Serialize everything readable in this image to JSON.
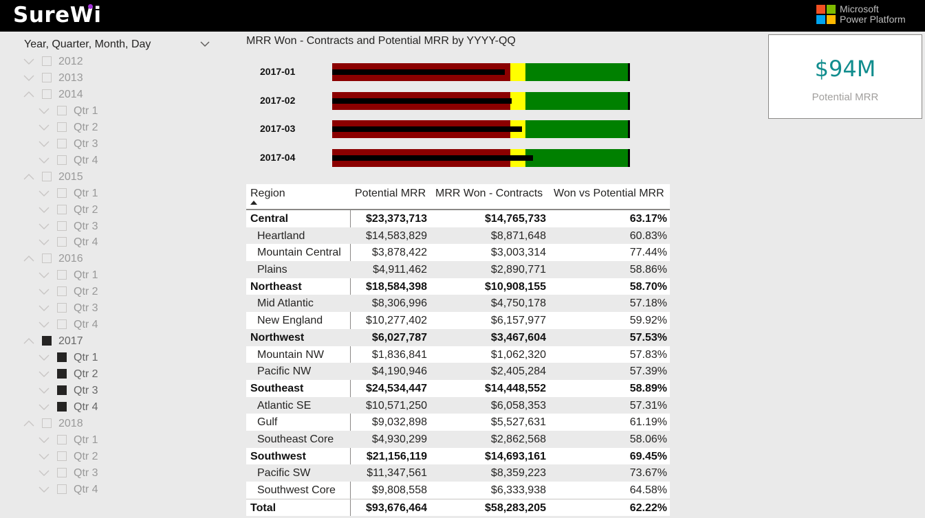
{
  "header": {
    "brand": "SureWi",
    "vendor_line1": "Microsoft",
    "vendor_line2": "Power Platform"
  },
  "slicer": {
    "title": "Year, Quarter, Month, Day",
    "items": [
      {
        "label": "2012",
        "level": 0,
        "expanded": false,
        "checked": false
      },
      {
        "label": "2013",
        "level": 0,
        "expanded": false,
        "checked": false
      },
      {
        "label": "2014",
        "level": 0,
        "expanded": true,
        "checked": false
      },
      {
        "label": "Qtr 1",
        "level": 1,
        "expanded": false,
        "checked": false
      },
      {
        "label": "Qtr 2",
        "level": 1,
        "expanded": false,
        "checked": false
      },
      {
        "label": "Qtr 3",
        "level": 1,
        "expanded": false,
        "checked": false
      },
      {
        "label": "Qtr 4",
        "level": 1,
        "expanded": false,
        "checked": false
      },
      {
        "label": "2015",
        "level": 0,
        "expanded": true,
        "checked": false
      },
      {
        "label": "Qtr 1",
        "level": 1,
        "expanded": false,
        "checked": false
      },
      {
        "label": "Qtr 2",
        "level": 1,
        "expanded": false,
        "checked": false
      },
      {
        "label": "Qtr 3",
        "level": 1,
        "expanded": false,
        "checked": false
      },
      {
        "label": "Qtr 4",
        "level": 1,
        "expanded": false,
        "checked": false
      },
      {
        "label": "2016",
        "level": 0,
        "expanded": true,
        "checked": false
      },
      {
        "label": "Qtr 1",
        "level": 1,
        "expanded": false,
        "checked": false
      },
      {
        "label": "Qtr 2",
        "level": 1,
        "expanded": false,
        "checked": false
      },
      {
        "label": "Qtr 3",
        "level": 1,
        "expanded": false,
        "checked": false
      },
      {
        "label": "Qtr 4",
        "level": 1,
        "expanded": false,
        "checked": false
      },
      {
        "label": "2017",
        "level": 0,
        "expanded": true,
        "checked": true
      },
      {
        "label": "Qtr 1",
        "level": 1,
        "expanded": false,
        "checked": true
      },
      {
        "label": "Qtr 2",
        "level": 1,
        "expanded": false,
        "checked": true
      },
      {
        "label": "Qtr 3",
        "level": 1,
        "expanded": false,
        "checked": true
      },
      {
        "label": "Qtr 4",
        "level": 1,
        "expanded": false,
        "checked": true
      },
      {
        "label": "2018",
        "level": 0,
        "expanded": true,
        "checked": false
      },
      {
        "label": "Qtr 1",
        "level": 1,
        "expanded": false,
        "checked": false
      },
      {
        "label": "Qtr 2",
        "level": 1,
        "expanded": false,
        "checked": false
      },
      {
        "label": "Qtr 3",
        "level": 1,
        "expanded": false,
        "checked": false
      },
      {
        "label": "Qtr 4",
        "level": 1,
        "expanded": false,
        "checked": false
      }
    ]
  },
  "chart_data": {
    "type": "bullet",
    "title": "MRR Won - Contracts and Potential MRR by YYYY-QQ",
    "scale_max": 100,
    "bands": [
      {
        "name": "poor",
        "upto": 60,
        "color": "#8b0000"
      },
      {
        "name": "satisfactory",
        "upto": 65,
        "color": "#ffff00"
      },
      {
        "name": "good",
        "upto": 100,
        "color": "#008000"
      }
    ],
    "categories": [
      "2017-01",
      "2017-02",
      "2017-03",
      "2017-04"
    ],
    "values": [
      58,
      60.5,
      64,
      67.5
    ],
    "targets": [
      100,
      100,
      100,
      100
    ]
  },
  "card": {
    "value": "$94M",
    "label": "Potential MRR"
  },
  "table": {
    "columns": [
      "Region",
      "Potential MRR",
      "MRR Won - Contracts",
      "Won vs Potential MRR"
    ],
    "rows": [
      {
        "region": "Central",
        "potential": "$23,373,713",
        "won": "$14,765,733",
        "pct": "63.17%",
        "bold": true
      },
      {
        "region": "Heartland",
        "potential": "$14,583,829",
        "won": "$8,871,648",
        "pct": "60.83%",
        "bold": false
      },
      {
        "region": "Mountain Central",
        "potential": "$3,878,422",
        "won": "$3,003,314",
        "pct": "77.44%",
        "bold": false
      },
      {
        "region": "Plains",
        "potential": "$4,911,462",
        "won": "$2,890,771",
        "pct": "58.86%",
        "bold": false
      },
      {
        "region": "Northeast",
        "potential": "$18,584,398",
        "won": "$10,908,155",
        "pct": "58.70%",
        "bold": true
      },
      {
        "region": "Mid Atlantic",
        "potential": "$8,306,996",
        "won": "$4,750,178",
        "pct": "57.18%",
        "bold": false
      },
      {
        "region": "New England",
        "potential": "$10,277,402",
        "won": "$6,157,977",
        "pct": "59.92%",
        "bold": false
      },
      {
        "region": "Northwest",
        "potential": "$6,027,787",
        "won": "$3,467,604",
        "pct": "57.53%",
        "bold": true
      },
      {
        "region": "Mountain NW",
        "potential": "$1,836,841",
        "won": "$1,062,320",
        "pct": "57.83%",
        "bold": false
      },
      {
        "region": "Pacific NW",
        "potential": "$4,190,946",
        "won": "$2,405,284",
        "pct": "57.39%",
        "bold": false
      },
      {
        "region": "Southeast",
        "potential": "$24,534,447",
        "won": "$14,448,552",
        "pct": "58.89%",
        "bold": true
      },
      {
        "region": "Atlantic SE",
        "potential": "$10,571,250",
        "won": "$6,058,353",
        "pct": "57.31%",
        "bold": false
      },
      {
        "region": "Gulf",
        "potential": "$9,032,898",
        "won": "$5,527,631",
        "pct": "61.19%",
        "bold": false
      },
      {
        "region": "Southeast Core",
        "potential": "$4,930,299",
        "won": "$2,862,568",
        "pct": "58.06%",
        "bold": false
      },
      {
        "region": "Southwest",
        "potential": "$21,156,119",
        "won": "$14,693,161",
        "pct": "69.45%",
        "bold": true
      },
      {
        "region": "Pacific SW",
        "potential": "$11,347,561",
        "won": "$8,359,223",
        "pct": "73.67%",
        "bold": false
      },
      {
        "region": "Southwest Core",
        "potential": "$9,808,558",
        "won": "$6,333,938",
        "pct": "64.58%",
        "bold": false
      }
    ],
    "total": {
      "region": "Total",
      "potential": "$93,676,464",
      "won": "$58,283,205",
      "pct": "62.22%"
    }
  }
}
